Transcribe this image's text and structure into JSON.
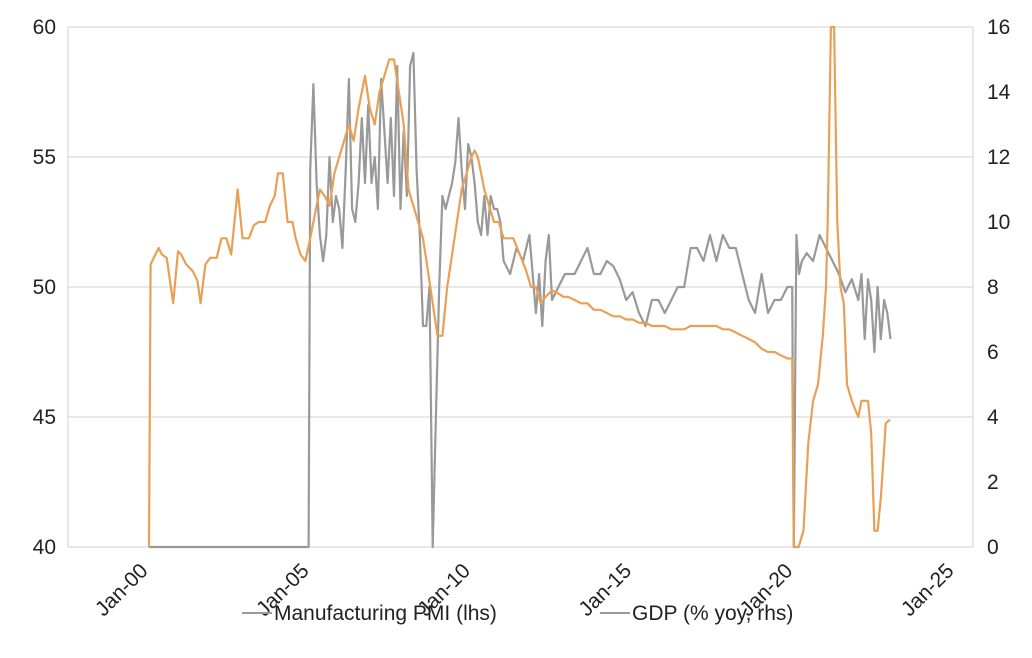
{
  "chart_data": {
    "type": "line",
    "title": "",
    "xlabel": "",
    "ylabel": "",
    "grid": "horizontal",
    "legend_position": "bottom",
    "xlim": [
      2000.0,
      2025.0
    ],
    "x_ticks": [
      "Jan-00",
      "Jan-05",
      "Jan-10",
      "Jan-15",
      "Jan-20",
      "Jan-25"
    ],
    "y_left": {
      "lim": [
        40,
        60
      ],
      "ticks": [
        40,
        45,
        50,
        55,
        60
      ]
    },
    "y_right": {
      "lim": [
        0,
        16
      ],
      "ticks": [
        0,
        2,
        4,
        6,
        8,
        10,
        12,
        14,
        16
      ]
    },
    "series": [
      {
        "name": "Manufacturing PMI (lhs)",
        "axis": "left",
        "color": "#999999",
        "x": [
          2004.95,
          2005.0,
          2005.1,
          2005.2,
          2005.3,
          2005.4,
          2005.5,
          2005.6,
          2005.7,
          2005.8,
          2005.9,
          2006.0,
          2006.1,
          2006.2,
          2006.3,
          2006.4,
          2006.5,
          2006.6,
          2006.7,
          2006.8,
          2006.9,
          2007.0,
          2007.1,
          2007.2,
          2007.3,
          2007.4,
          2007.5,
          2007.6,
          2007.7,
          2007.8,
          2007.9,
          2008.0,
          2008.1,
          2008.2,
          2008.3,
          2008.4,
          2008.5,
          2008.6,
          2008.7,
          2008.8,
          2008.9,
          2009.0,
          2009.1,
          2009.2,
          2009.3,
          2009.4,
          2009.5,
          2009.6,
          2009.7,
          2009.8,
          2009.9,
          2010.0,
          2010.1,
          2010.2,
          2010.3,
          2010.4,
          2010.5,
          2010.6,
          2010.7,
          2010.8,
          2010.9,
          2011.0,
          2011.2,
          2011.4,
          2011.6,
          2011.8,
          2012.0,
          2012.1,
          2012.2,
          2012.3,
          2012.4,
          2012.5,
          2012.7,
          2012.9,
          2013.0,
          2013.2,
          2013.4,
          2013.6,
          2013.8,
          2014.0,
          2014.2,
          2014.4,
          2014.6,
          2014.8,
          2015.0,
          2015.2,
          2015.4,
          2015.6,
          2015.8,
          2016.0,
          2016.2,
          2016.4,
          2016.6,
          2016.8,
          2017.0,
          2017.2,
          2017.4,
          2017.6,
          2017.8,
          2018.0,
          2018.2,
          2018.4,
          2018.6,
          2018.8,
          2019.0,
          2019.2,
          2019.4,
          2019.6,
          2019.8,
          2019.95,
          2020.0,
          2020.08,
          2020.16,
          2020.25,
          2020.4,
          2020.6,
          2020.8,
          2021.0,
          2021.2,
          2021.4,
          2021.6,
          2021.8,
          2022.0,
          2022.1,
          2022.2,
          2022.3,
          2022.4,
          2022.5,
          2022.6,
          2022.7,
          2022.8,
          2022.9,
          2023.0
        ],
        "values": [
          40.0,
          54.5,
          57.8,
          54.0,
          52.0,
          51.0,
          52.0,
          55.0,
          52.5,
          53.5,
          53.0,
          51.5,
          54.5,
          58.0,
          53.0,
          52.5,
          54.0,
          56.5,
          54.0,
          57.0,
          54.0,
          55.0,
          53.0,
          58.0,
          56.0,
          54.0,
          56.5,
          53.5,
          58.5,
          53.0,
          56.0,
          53.5,
          58.5,
          59.0,
          54.5,
          52.0,
          48.5,
          48.5,
          50.0,
          40.0,
          45.0,
          50.0,
          53.5,
          53.0,
          53.5,
          54.0,
          54.8,
          56.5,
          54.5,
          53.0,
          55.5,
          55.0,
          54.0,
          52.5,
          52.0,
          53.5,
          52.0,
          53.5,
          53.0,
          53.0,
          52.5,
          51.0,
          50.5,
          51.5,
          51.0,
          52.0,
          49.0,
          50.5,
          48.5,
          51.0,
          52.0,
          49.5,
          50.0,
          50.5,
          50.5,
          50.5,
          51.0,
          51.5,
          50.5,
          50.5,
          51.0,
          50.8,
          50.3,
          49.5,
          49.8,
          49.0,
          48.5,
          49.5,
          49.5,
          49.0,
          49.5,
          50.0,
          50.0,
          51.5,
          51.5,
          51.0,
          52.0,
          51.0,
          52.0,
          51.5,
          51.5,
          50.5,
          49.5,
          49.0,
          50.5,
          49.0,
          49.5,
          49.5,
          50.0,
          50.0,
          40.0,
          52.0,
          50.5,
          51.0,
          51.3,
          51.0,
          52.0,
          51.5,
          51.0,
          50.5,
          49.8,
          50.3,
          49.5,
          50.5,
          48.0,
          50.3,
          49.5,
          47.5,
          50.0,
          48.0,
          49.5,
          49.0,
          48.0
        ],
        "flat_segment": {
          "x": [
            2000.0,
            2004.95
          ],
          "value": 40
        }
      },
      {
        "name": "GDP (% yoy, rhs)",
        "axis": "right",
        "color": "#e8a055",
        "x": [
          2000.0,
          2000.05,
          2000.1,
          2000.3,
          2000.4,
          2000.55,
          2000.75,
          2000.9,
          2001.0,
          2001.15,
          2001.35,
          2001.5,
          2001.6,
          2001.75,
          2001.9,
          2002.1,
          2002.25,
          2002.4,
          2002.55,
          2002.75,
          2002.9,
          2003.1,
          2003.25,
          2003.4,
          2003.5,
          2003.6,
          2003.75,
          2003.9,
          2004.0,
          2004.15,
          2004.3,
          2004.45,
          2004.55,
          2004.7,
          2004.85,
          2005.0,
          2005.1,
          2005.2,
          2005.3,
          2005.45,
          2005.6,
          2005.75,
          2005.9,
          2006.05,
          2006.2,
          2006.35,
          2006.5,
          2006.7,
          2006.85,
          2007.0,
          2007.15,
          2007.3,
          2007.45,
          2007.6,
          2007.75,
          2007.9,
          2008.05,
          2008.2,
          2008.35,
          2008.5,
          2008.65,
          2008.8,
          2008.95,
          2009.1,
          2009.25,
          2009.4,
          2009.55,
          2009.7,
          2009.85,
          2010.0,
          2010.1,
          2010.2,
          2010.3,
          2010.4,
          2010.55,
          2010.7,
          2010.85,
          2011.0,
          2011.15,
          2011.3,
          2011.5,
          2011.7,
          2011.85,
          2012.0,
          2012.15,
          2012.3,
          2012.5,
          2012.7,
          2012.85,
          2013.0,
          2013.2,
          2013.4,
          2013.6,
          2013.8,
          2014.0,
          2014.2,
          2014.4,
          2014.6,
          2014.8,
          2015.0,
          2015.2,
          2015.4,
          2015.6,
          2015.8,
          2016.0,
          2016.2,
          2016.4,
          2016.6,
          2016.8,
          2017.0,
          2017.2,
          2017.4,
          2017.6,
          2017.8,
          2018.0,
          2018.2,
          2018.4,
          2018.6,
          2018.8,
          2019.0,
          2019.2,
          2019.4,
          2019.6,
          2019.8,
          2019.95,
          2020.0,
          2020.15,
          2020.3,
          2020.45,
          2020.6,
          2020.75,
          2020.9,
          2021.0,
          2021.05,
          2021.15,
          2021.25,
          2021.35,
          2021.45,
          2021.55,
          2021.65,
          2021.8,
          2022.0,
          2022.1,
          2022.2,
          2022.3,
          2022.4,
          2022.5,
          2022.6,
          2022.7,
          2022.8,
          2022.85,
          2022.95,
          2023.0
        ],
        "values": [
          0.0,
          8.7,
          8.8,
          9.2,
          9.0,
          8.9,
          7.5,
          9.1,
          9.0,
          8.7,
          8.5,
          8.2,
          7.5,
          8.7,
          8.9,
          8.9,
          9.5,
          9.5,
          9.0,
          11.0,
          9.5,
          9.5,
          9.9,
          10.0,
          10.0,
          10.0,
          10.5,
          10.8,
          11.5,
          11.5,
          10.0,
          10.0,
          9.5,
          9.0,
          8.8,
          9.5,
          10.0,
          10.5,
          11.0,
          10.8,
          10.5,
          11.5,
          12.0,
          12.5,
          13.0,
          12.5,
          13.5,
          14.5,
          13.5,
          13.0,
          14.0,
          14.5,
          15.0,
          15.0,
          14.0,
          13.0,
          11.0,
          10.5,
          10.0,
          9.5,
          8.5,
          7.5,
          6.5,
          6.5,
          8.0,
          9.0,
          10.0,
          11.0,
          11.5,
          12.0,
          12.2,
          12.0,
          11.5,
          11.0,
          10.5,
          10.0,
          10.0,
          9.5,
          9.5,
          9.5,
          9.0,
          8.5,
          8.0,
          8.0,
          7.5,
          7.7,
          7.9,
          7.8,
          7.7,
          7.7,
          7.6,
          7.5,
          7.5,
          7.3,
          7.3,
          7.2,
          7.1,
          7.1,
          7.0,
          7.0,
          6.9,
          6.9,
          6.8,
          6.8,
          6.8,
          6.7,
          6.7,
          6.7,
          6.8,
          6.8,
          6.8,
          6.8,
          6.8,
          6.7,
          6.7,
          6.6,
          6.5,
          6.4,
          6.3,
          6.1,
          6.0,
          6.0,
          5.9,
          5.8,
          5.8,
          0.0,
          0.0,
          0.5,
          3.2,
          4.5,
          5.0,
          6.5,
          8.0,
          10.0,
          16.0,
          16.0,
          10.0,
          8.0,
          7.5,
          5.0,
          4.5,
          4.0,
          4.5,
          4.5,
          4.5,
          3.5,
          0.5,
          0.5,
          1.5,
          3.0,
          3.8,
          3.9,
          3.9
        ]
      }
    ]
  }
}
